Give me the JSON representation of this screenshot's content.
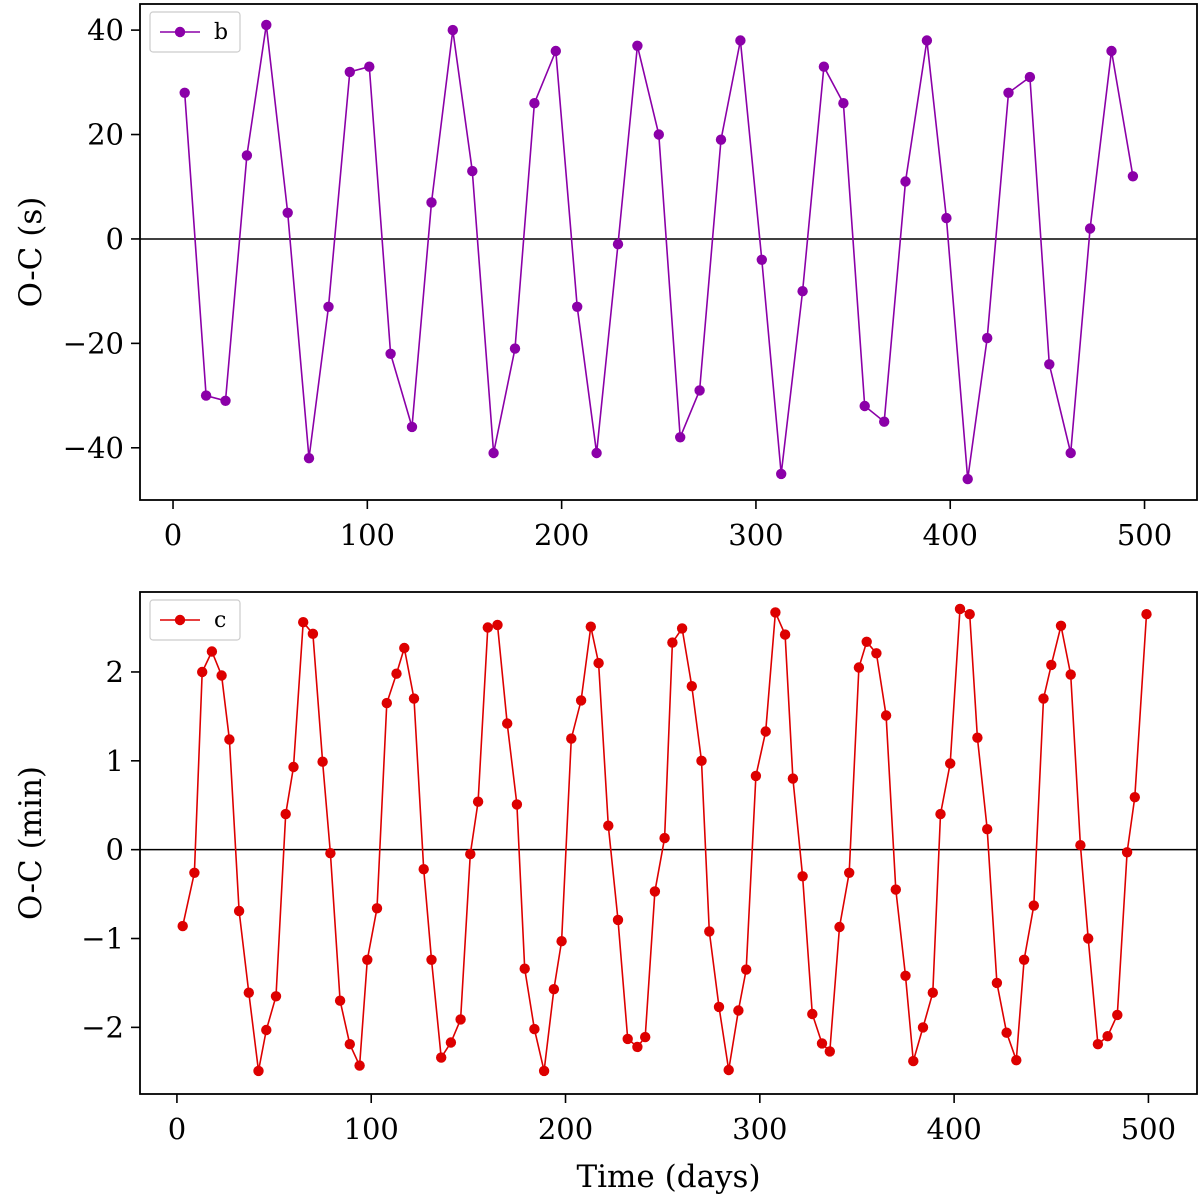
{
  "chart_data": [
    {
      "type": "line",
      "title": "",
      "xlabel": "",
      "ylabel": "O-C (s)",
      "xlim": [
        -17,
        527
      ],
      "ylim": [
        -50,
        45
      ],
      "xticks": [
        0,
        100,
        200,
        300,
        400,
        500
      ],
      "yticks": [
        40,
        20,
        0,
        -20,
        -40
      ],
      "zero_line": true,
      "grid": false,
      "legend_position": "top-left",
      "series": [
        {
          "name": "b",
          "color": "#8b00a8",
          "marker": "circle",
          "x": [
            6,
            17,
            27,
            38,
            48,
            59,
            70,
            80,
            91,
            101,
            112,
            123,
            133,
            144,
            154,
            165,
            176,
            186,
            197,
            208,
            218,
            229,
            239,
            250,
            261,
            271,
            282,
            292,
            303,
            313,
            324,
            335,
            345,
            356,
            366,
            377,
            388,
            398,
            409,
            419,
            430,
            441,
            451,
            462,
            472,
            483,
            494
          ],
          "y": [
            28,
            -30,
            -31,
            16,
            41,
            5,
            -42,
            -13,
            32,
            33,
            -22,
            -36,
            7,
            40,
            13,
            -41,
            -21,
            26,
            36,
            -13,
            -41,
            -1,
            37,
            20,
            -38,
            -29,
            19,
            38,
            -4,
            -45,
            -10,
            33,
            26,
            -32,
            -35,
            11,
            38,
            4,
            -46,
            -19,
            28,
            31,
            -24,
            -41,
            2,
            36,
            12
          ]
        }
      ]
    },
    {
      "type": "line",
      "title": "",
      "xlabel": "Time (days)",
      "ylabel": "O-C (min)",
      "xlim": [
        -19,
        525
      ],
      "ylim": [
        -2.75,
        2.9
      ],
      "xticks": [
        0,
        100,
        200,
        300,
        400,
        500
      ],
      "yticks": [
        2,
        1,
        0,
        -1,
        -2
      ],
      "zero_line": true,
      "grid": false,
      "legend_position": "top-left",
      "series": [
        {
          "name": "c",
          "color": "#dd0000",
          "marker": "circle",
          "x": [
            3,
            9,
            13,
            18,
            23,
            27,
            32,
            37,
            42,
            46,
            51,
            56,
            60,
            65,
            70,
            75,
            79,
            84,
            89,
            94,
            98,
            103,
            108,
            113,
            117,
            122,
            127,
            131,
            136,
            141,
            146,
            151,
            155,
            160,
            165,
            170,
            175,
            179,
            184,
            189,
            194,
            198,
            203,
            208,
            213,
            217,
            222,
            227,
            232,
            237,
            241,
            246,
            251,
            255,
            260,
            265,
            270,
            274,
            279,
            284,
            289,
            293,
            298,
            303,
            308,
            313,
            317,
            322,
            327,
            332,
            336,
            341,
            346,
            351,
            355,
            360,
            365,
            370,
            375,
            379,
            384,
            389,
            393,
            398,
            403,
            408,
            412,
            417,
            422,
            427,
            432,
            436,
            441,
            446,
            450,
            455,
            460,
            465,
            469,
            474,
            479,
            484,
            489,
            493,
            499
          ],
          "y": [
            -0.86,
            -0.26,
            2.0,
            2.23,
            1.96,
            1.24,
            -0.69,
            -1.61,
            -2.49,
            -2.03,
            -1.65,
            0.4,
            0.93,
            2.56,
            2.43,
            0.99,
            -0.04,
            -1.7,
            -2.19,
            -2.43,
            -1.24,
            -0.66,
            1.65,
            1.98,
            2.27,
            1.7,
            -0.22,
            -1.24,
            -2.34,
            -2.17,
            -1.91,
            -0.05,
            0.54,
            2.5,
            2.53,
            1.42,
            0.51,
            -1.34,
            -2.02,
            -2.49,
            -1.57,
            -1.03,
            1.25,
            1.68,
            2.51,
            2.1,
            0.27,
            -0.79,
            -2.13,
            -2.22,
            -2.11,
            -0.47,
            0.13,
            2.33,
            2.49,
            1.84,
            1.0,
            -0.92,
            -1.77,
            -2.48,
            -1.81,
            -1.35,
            0.83,
            1.33,
            2.67,
            2.42,
            0.8,
            -0.3,
            -1.85,
            -2.18,
            -2.27,
            -0.87,
            -0.26,
            2.05,
            2.34,
            2.21,
            1.51,
            -0.45,
            -1.42,
            -2.38,
            -2.0,
            -1.61,
            0.4,
            0.97,
            2.71,
            2.65,
            1.26,
            0.23,
            -1.5,
            -2.06,
            -2.37,
            -1.24,
            -0.63,
            1.7,
            2.08,
            2.52,
            1.97,
            0.05,
            -1.0,
            -2.19,
            -2.1,
            -1.86,
            -0.03,
            0.59,
            2.65
          ]
        }
      ]
    }
  ]
}
